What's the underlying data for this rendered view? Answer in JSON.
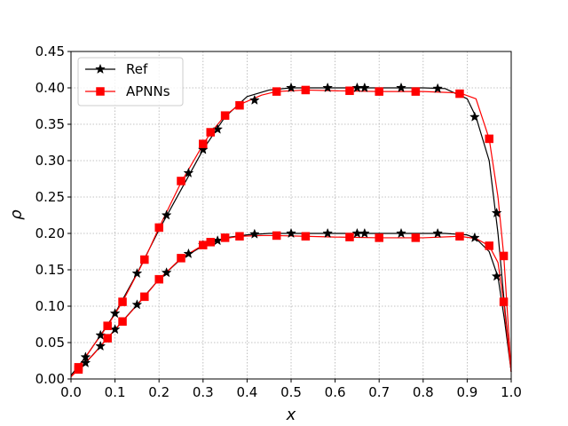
{
  "chart_data": {
    "type": "line",
    "xlabel": "x",
    "ylabel": "ρ",
    "xlim": [
      0.0,
      1.0
    ],
    "ylim": [
      0.0,
      0.45
    ],
    "xticks": [
      "0.0",
      "0.1",
      "0.2",
      "0.3",
      "0.4",
      "0.5",
      "0.6",
      "0.7",
      "0.8",
      "0.9",
      "1.0"
    ],
    "yticks": [
      "0.00",
      "0.05",
      "0.10",
      "0.15",
      "0.20",
      "0.25",
      "0.30",
      "0.35",
      "0.40",
      "0.45"
    ],
    "grid": true,
    "legend_position": "top-left",
    "series": [
      {
        "name": "Ref",
        "color": "#000000",
        "marker": "star",
        "curves": [
          {
            "x": [
              0.0,
              0.033,
              0.067,
              0.1,
              0.15,
              0.2,
              0.25,
              0.3,
              0.333,
              0.35,
              0.4,
              0.45,
              0.5,
              0.55,
              0.6,
              0.65,
              0.7,
              0.75,
              0.8,
              0.85,
              0.9,
              0.92,
              0.95,
              0.97,
              0.985,
              1.0
            ],
            "y": [
              0.005,
              0.03,
              0.06,
              0.09,
              0.145,
              0.205,
              0.26,
              0.315,
              0.345,
              0.36,
              0.388,
              0.397,
              0.4,
              0.4,
              0.4,
              0.4,
              0.4,
              0.4,
              0.4,
              0.399,
              0.385,
              0.36,
              0.3,
              0.2,
              0.1,
              0.01
            ]
          },
          {
            "x": [
              0.0,
              0.033,
              0.067,
              0.1,
              0.15,
              0.2,
              0.25,
              0.3,
              0.333,
              0.35,
              0.4,
              0.45,
              0.5,
              0.55,
              0.6,
              0.65,
              0.7,
              0.75,
              0.8,
              0.85,
              0.9,
              0.92,
              0.95,
              0.97,
              0.985,
              1.0
            ],
            "y": [
              0.005,
              0.022,
              0.045,
              0.068,
              0.102,
              0.137,
              0.165,
              0.183,
              0.19,
              0.194,
              0.198,
              0.2,
              0.2,
              0.2,
              0.2,
              0.2,
              0.2,
              0.2,
              0.2,
              0.2,
              0.198,
              0.193,
              0.175,
              0.14,
              0.08,
              0.01
            ]
          }
        ],
        "markers": [
          {
            "x": [
              0.033,
              0.067,
              0.1,
              0.15,
              0.217,
              0.267,
              0.3,
              0.333,
              0.417,
              0.5,
              0.583,
              0.65,
              0.667,
              0.75,
              0.833,
              0.917,
              0.967
            ],
            "y": [
              0.03,
              0.06,
              0.09,
              0.145,
              0.225,
              0.283,
              0.315,
              0.343,
              0.383,
              0.4,
              0.4,
              0.4,
              0.4,
              0.4,
              0.399,
              0.36,
              0.228
            ]
          },
          {
            "x": [
              0.033,
              0.067,
              0.1,
              0.15,
              0.217,
              0.267,
              0.3,
              0.333,
              0.417,
              0.5,
              0.583,
              0.65,
              0.667,
              0.75,
              0.833,
              0.917,
              0.967
            ],
            "y": [
              0.022,
              0.045,
              0.068,
              0.102,
              0.146,
              0.172,
              0.184,
              0.19,
              0.199,
              0.2,
              0.2,
              0.2,
              0.2,
              0.2,
              0.2,
              0.194,
              0.141
            ]
          }
        ]
      },
      {
        "name": "APNNs",
        "color": "#ff0000",
        "marker": "square",
        "curves": [
          {
            "x": [
              0.0,
              0.017,
              0.05,
              0.083,
              0.117,
              0.167,
              0.2,
              0.25,
              0.3,
              0.317,
              0.35,
              0.383,
              0.433,
              0.467,
              0.533,
              0.6,
              0.7,
              0.8,
              0.883,
              0.92,
              0.95,
              0.97,
              0.983,
              1.0
            ],
            "y": [
              0.003,
              0.016,
              0.045,
              0.073,
              0.106,
              0.164,
              0.208,
              0.27,
              0.322,
              0.338,
              0.362,
              0.377,
              0.39,
              0.395,
              0.397,
              0.396,
              0.395,
              0.395,
              0.393,
              0.385,
              0.33,
              0.25,
              0.17,
              0.01
            ]
          },
          {
            "x": [
              0.0,
              0.017,
              0.05,
              0.083,
              0.117,
              0.167,
              0.2,
              0.25,
              0.3,
              0.317,
              0.35,
              0.383,
              0.433,
              0.467,
              0.533,
              0.6,
              0.7,
              0.8,
              0.883,
              0.92,
              0.95,
              0.97,
              0.983,
              1.0
            ],
            "y": [
              0.003,
              0.013,
              0.033,
              0.056,
              0.079,
              0.113,
              0.137,
              0.166,
              0.184,
              0.188,
              0.193,
              0.196,
              0.197,
              0.197,
              0.196,
              0.195,
              0.194,
              0.194,
              0.196,
              0.193,
              0.183,
              0.16,
              0.105,
              0.01
            ]
          }
        ],
        "markers": [
          {
            "x": [
              0.017,
              0.083,
              0.117,
              0.167,
              0.2,
              0.25,
              0.3,
              0.317,
              0.35,
              0.383,
              0.467,
              0.533,
              0.633,
              0.7,
              0.783,
              0.883,
              0.95,
              0.983
            ],
            "y": [
              0.016,
              0.073,
              0.106,
              0.164,
              0.208,
              0.272,
              0.323,
              0.339,
              0.362,
              0.376,
              0.395,
              0.397,
              0.396,
              0.395,
              0.395,
              0.392,
              0.33,
              0.169
            ]
          },
          {
            "x": [
              0.017,
              0.083,
              0.117,
              0.167,
              0.2,
              0.25,
              0.3,
              0.317,
              0.35,
              0.383,
              0.467,
              0.533,
              0.633,
              0.7,
              0.783,
              0.883,
              0.95,
              0.983
            ],
            "y": [
              0.013,
              0.056,
              0.079,
              0.113,
              0.137,
              0.166,
              0.184,
              0.188,
              0.194,
              0.196,
              0.197,
              0.196,
              0.195,
              0.194,
              0.194,
              0.196,
              0.183,
              0.106
            ]
          }
        ]
      }
    ]
  }
}
